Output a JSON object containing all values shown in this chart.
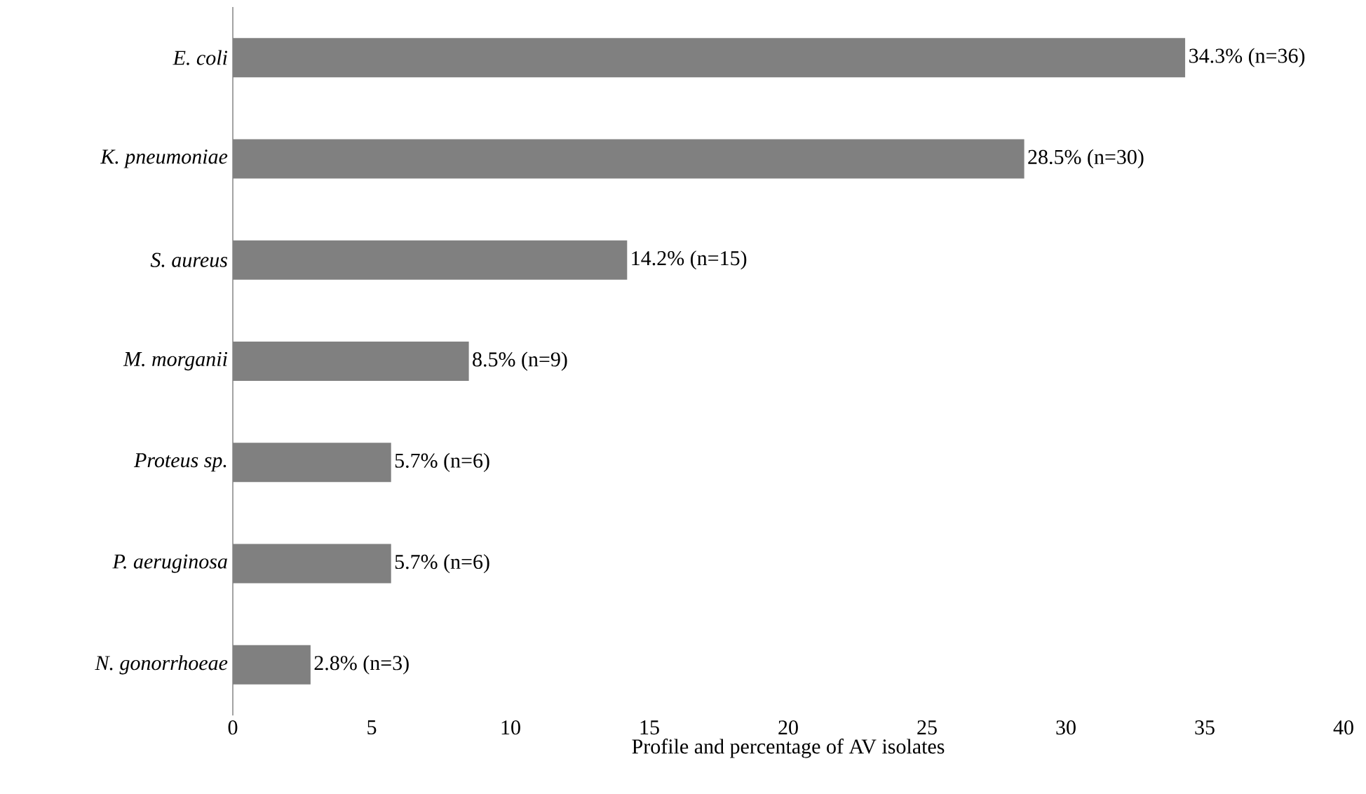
{
  "chart_data": {
    "type": "bar",
    "orientation": "horizontal",
    "categories": [
      "E. coli",
      "K. pneumoniae",
      "S. aureus",
      "M. morganii",
      "Proteus sp.",
      "P. aeruginosa",
      "N. gonorrhoeae"
    ],
    "values": [
      34.3,
      28.5,
      14.2,
      8.5,
      5.7,
      5.7,
      2.8
    ],
    "value_labels": [
      "34.3% (n=36)",
      "28.5% (n=30)",
      "14.2% (n=15)",
      "8.5% (n=9)",
      "5.7% (n=6)",
      "5.7% (n=6)",
      "2.8% (n=3)"
    ],
    "color": "#808080",
    "xlim": [
      0,
      40
    ],
    "xticks": [
      0,
      5,
      10,
      15,
      20,
      25,
      30,
      35,
      40
    ],
    "xlabel": "Profile and percentage of  AV isolates"
  }
}
